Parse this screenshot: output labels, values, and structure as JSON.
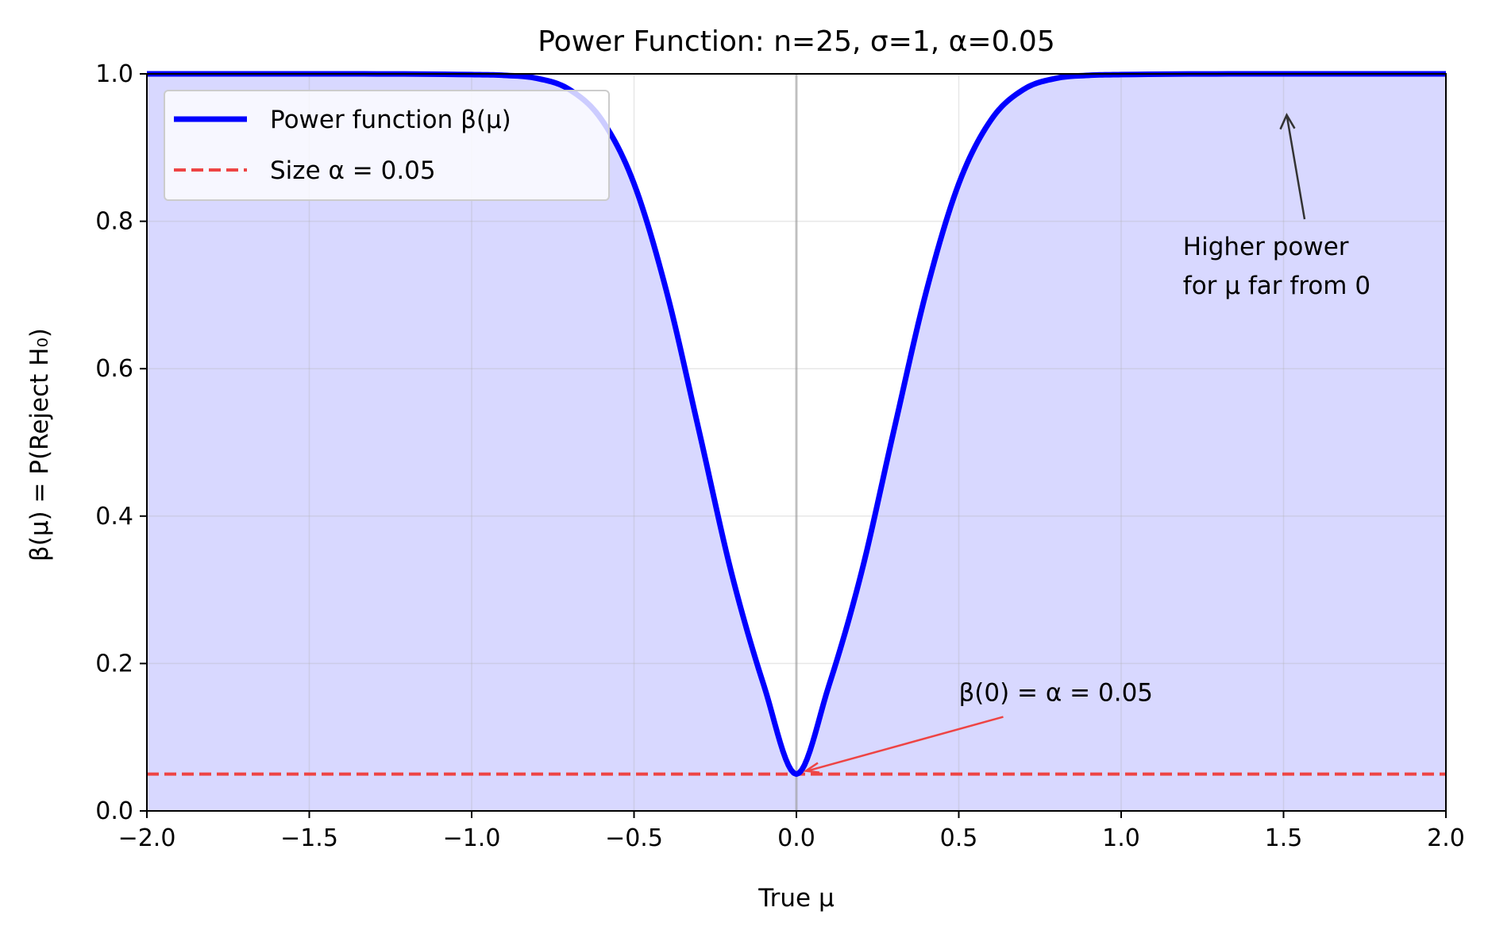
{
  "chart_data": {
    "type": "line",
    "title": "Power Function: n=25, σ=1, α=0.05",
    "xlabel": "True μ",
    "ylabel": "β(μ) = P(Reject H₀)",
    "xlim": [
      -2.0,
      2.0
    ],
    "ylim": [
      0.0,
      1.0
    ],
    "x_ticks": [
      "−2.0",
      "−1.5",
      "−1.0",
      "−0.5",
      "0.0",
      "0.5",
      "1.0",
      "1.5",
      "2.0"
    ],
    "y_ticks": [
      "0.0",
      "0.2",
      "0.4",
      "0.6",
      "0.8",
      "1.0"
    ],
    "grid": true,
    "legend_position": "top-left",
    "series": [
      {
        "name": "Power function β(μ)",
        "color": "#0000ff",
        "style": "solid",
        "fill_color": "#d8d8ff",
        "x": [
          -2.0,
          -1.5,
          -1.0,
          -0.9,
          -0.8,
          -0.7,
          -0.6,
          -0.5,
          -0.4,
          -0.3,
          -0.2,
          -0.1,
          0.0,
          0.1,
          0.2,
          0.3,
          0.4,
          0.5,
          0.6,
          0.7,
          0.8,
          0.9,
          1.0,
          1.5,
          2.0
        ],
        "y": [
          1.0,
          1.0,
          0.999,
          0.998,
          0.994,
          0.979,
          0.938,
          0.851,
          0.705,
          0.516,
          0.323,
          0.17,
          0.05,
          0.17,
          0.323,
          0.516,
          0.705,
          0.851,
          0.938,
          0.979,
          0.994,
          0.998,
          0.999,
          1.0,
          1.0
        ]
      },
      {
        "name": "Size α = 0.05",
        "color": "#ee4444",
        "style": "dashed",
        "x": [
          -2.0,
          2.0
        ],
        "y": [
          0.05,
          0.05
        ]
      }
    ],
    "annotations": [
      {
        "text": "β(0) = α = 0.05",
        "point": [
          0.0,
          0.05
        ],
        "text_at": [
          0.5,
          0.16
        ],
        "color": "#ee4444"
      },
      {
        "lines": [
          "Higher power",
          "for μ far from 0"
        ],
        "point": [
          1.5,
          0.94
        ],
        "text_at": [
          1.2,
          0.75
        ],
        "color": "#333333"
      }
    ]
  }
}
